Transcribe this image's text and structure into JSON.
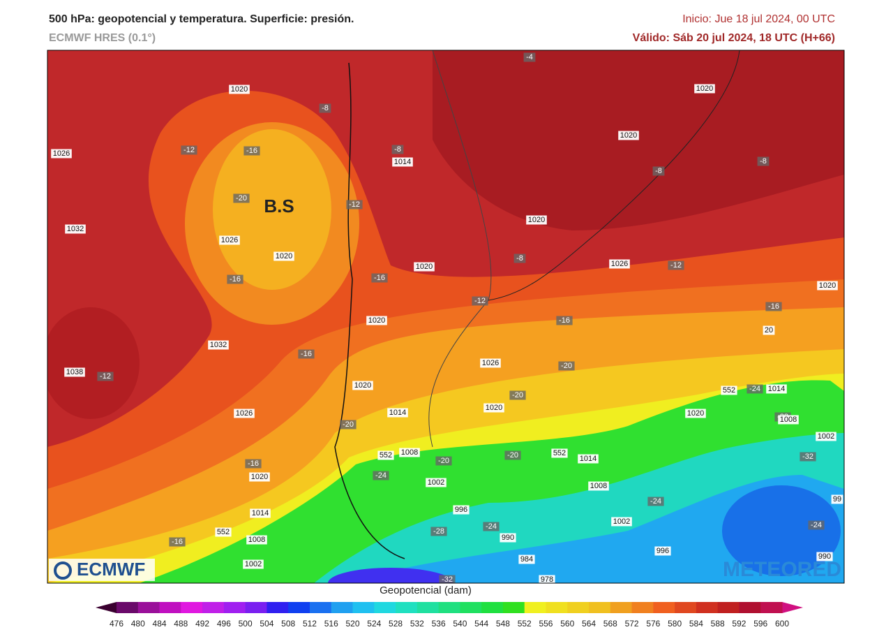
{
  "header": {
    "title": "500 hPa: geopotencial y temperatura. Superficie: presión.",
    "subtitle": "ECMWF HRES (0.1°)",
    "init": "Inicio: Jue 18 jul 2024, 00 UTC",
    "valid": "Válido: Sáb 20 jul 2024, 18 UTC (H+66)"
  },
  "map": {
    "annotation": "B.S",
    "labels": [
      "1020",
      "-8",
      "1026",
      "-12",
      "-16",
      "-20",
      "-12",
      "1032",
      "1026",
      "1020",
      "-16",
      "-16",
      "1032",
      "-16",
      "1038",
      "-12",
      "1026",
      "-16",
      "1020",
      "1014",
      "552",
      "1008",
      "-16",
      "1002",
      "-4",
      "1020",
      "1020",
      "-8",
      "1014",
      "-8",
      "-8",
      "1020",
      "1020",
      "-8",
      "1026",
      "-12",
      "1020",
      "-12",
      "-16",
      "1020",
      "-16",
      "20",
      "1026",
      "-20",
      "1020",
      "-20",
      "1020",
      "1014",
      "552",
      "-24",
      "1014",
      "1020",
      "-28",
      "1008",
      "-20",
      "1002",
      "552",
      "1008",
      "-20",
      "-20",
      "552",
      "1014",
      "-32",
      "-24",
      "1002",
      "1008",
      "-24",
      "99",
      "996",
      "-24",
      "1002",
      "-24",
      "-28",
      "990",
      "996",
      "984",
      "990",
      "-32",
      "978"
    ]
  },
  "logos": {
    "left": "ECMWF",
    "right": "METEORED"
  },
  "colorbar": {
    "title": "Geopotencial (dam)",
    "ticks": [
      476,
      480,
      484,
      488,
      492,
      496,
      500,
      504,
      508,
      512,
      516,
      520,
      524,
      528,
      532,
      536,
      540,
      544,
      548,
      552,
      556,
      560,
      564,
      568,
      572,
      576,
      580,
      584,
      588,
      592,
      596,
      600
    ],
    "under_color": "#3a0030",
    "over_color": "#d01080",
    "colors": [
      "#6a0a6a",
      "#9a109a",
      "#c010c0",
      "#e018e0",
      "#c020e8",
      "#a020f0",
      "#7a20f0",
      "#3020f0",
      "#1040f0",
      "#1a70f0",
      "#20a0f0",
      "#20c0f0",
      "#20d8e0",
      "#20e0c0",
      "#20e0a0",
      "#20e080",
      "#20e060",
      "#20e040",
      "#30e020",
      "#f0f020",
      "#f0e020",
      "#f0d020",
      "#f0c020",
      "#f0a020",
      "#f08020",
      "#f06020",
      "#e04820",
      "#d03020",
      "#c02020",
      "#b01030",
      "#c01050"
    ]
  }
}
